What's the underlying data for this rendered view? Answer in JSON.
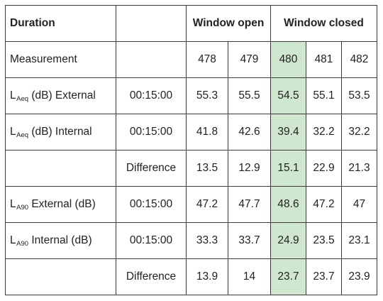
{
  "header": {
    "duration": "Duration",
    "window_open": "Window open",
    "window_closed": "Window closed"
  },
  "measurement_row": {
    "label": "Measurement",
    "values": [
      "478",
      "479",
      "480",
      "481",
      "482"
    ]
  },
  "rows": [
    {
      "label_main": "L",
      "label_sub": "Aeq",
      "label_rest": " (dB) External",
      "time": "00:15:00",
      "values": [
        "55.3",
        "55.5",
        "54.5",
        "55.1",
        "53.5"
      ]
    },
    {
      "label_main": "L",
      "label_sub": "Aeq",
      "label_rest": " (dB) Internal",
      "time": "00:15:00",
      "values": [
        "41.8",
        "42.6",
        "39.4",
        "32.2",
        "32.2"
      ]
    },
    {
      "label_main": "",
      "label_sub": "",
      "label_rest": "",
      "time": "Difference",
      "values": [
        "13.5",
        "12.9",
        "15.1",
        "22.9",
        "21.3"
      ]
    },
    {
      "label_main": "L",
      "label_sub": "A90",
      "label_rest": " External (dB)",
      "time": "00:15:00",
      "values": [
        "47.2",
        "47.7",
        "48.6",
        "47.2",
        "47"
      ]
    },
    {
      "label_main": "L",
      "label_sub": "A90",
      "label_rest": " Internal (dB)",
      "time": "00:15:00",
      "values": [
        "33.3",
        "33.7",
        "24.9",
        "23.5",
        "23.1"
      ]
    },
    {
      "label_main": "",
      "label_sub": "",
      "label_rest": "",
      "time": "Difference",
      "values": [
        "13.9",
        "14",
        "23.7",
        "23.7",
        "23.9"
      ]
    }
  ],
  "highlight_color": "#cfe6cf"
}
